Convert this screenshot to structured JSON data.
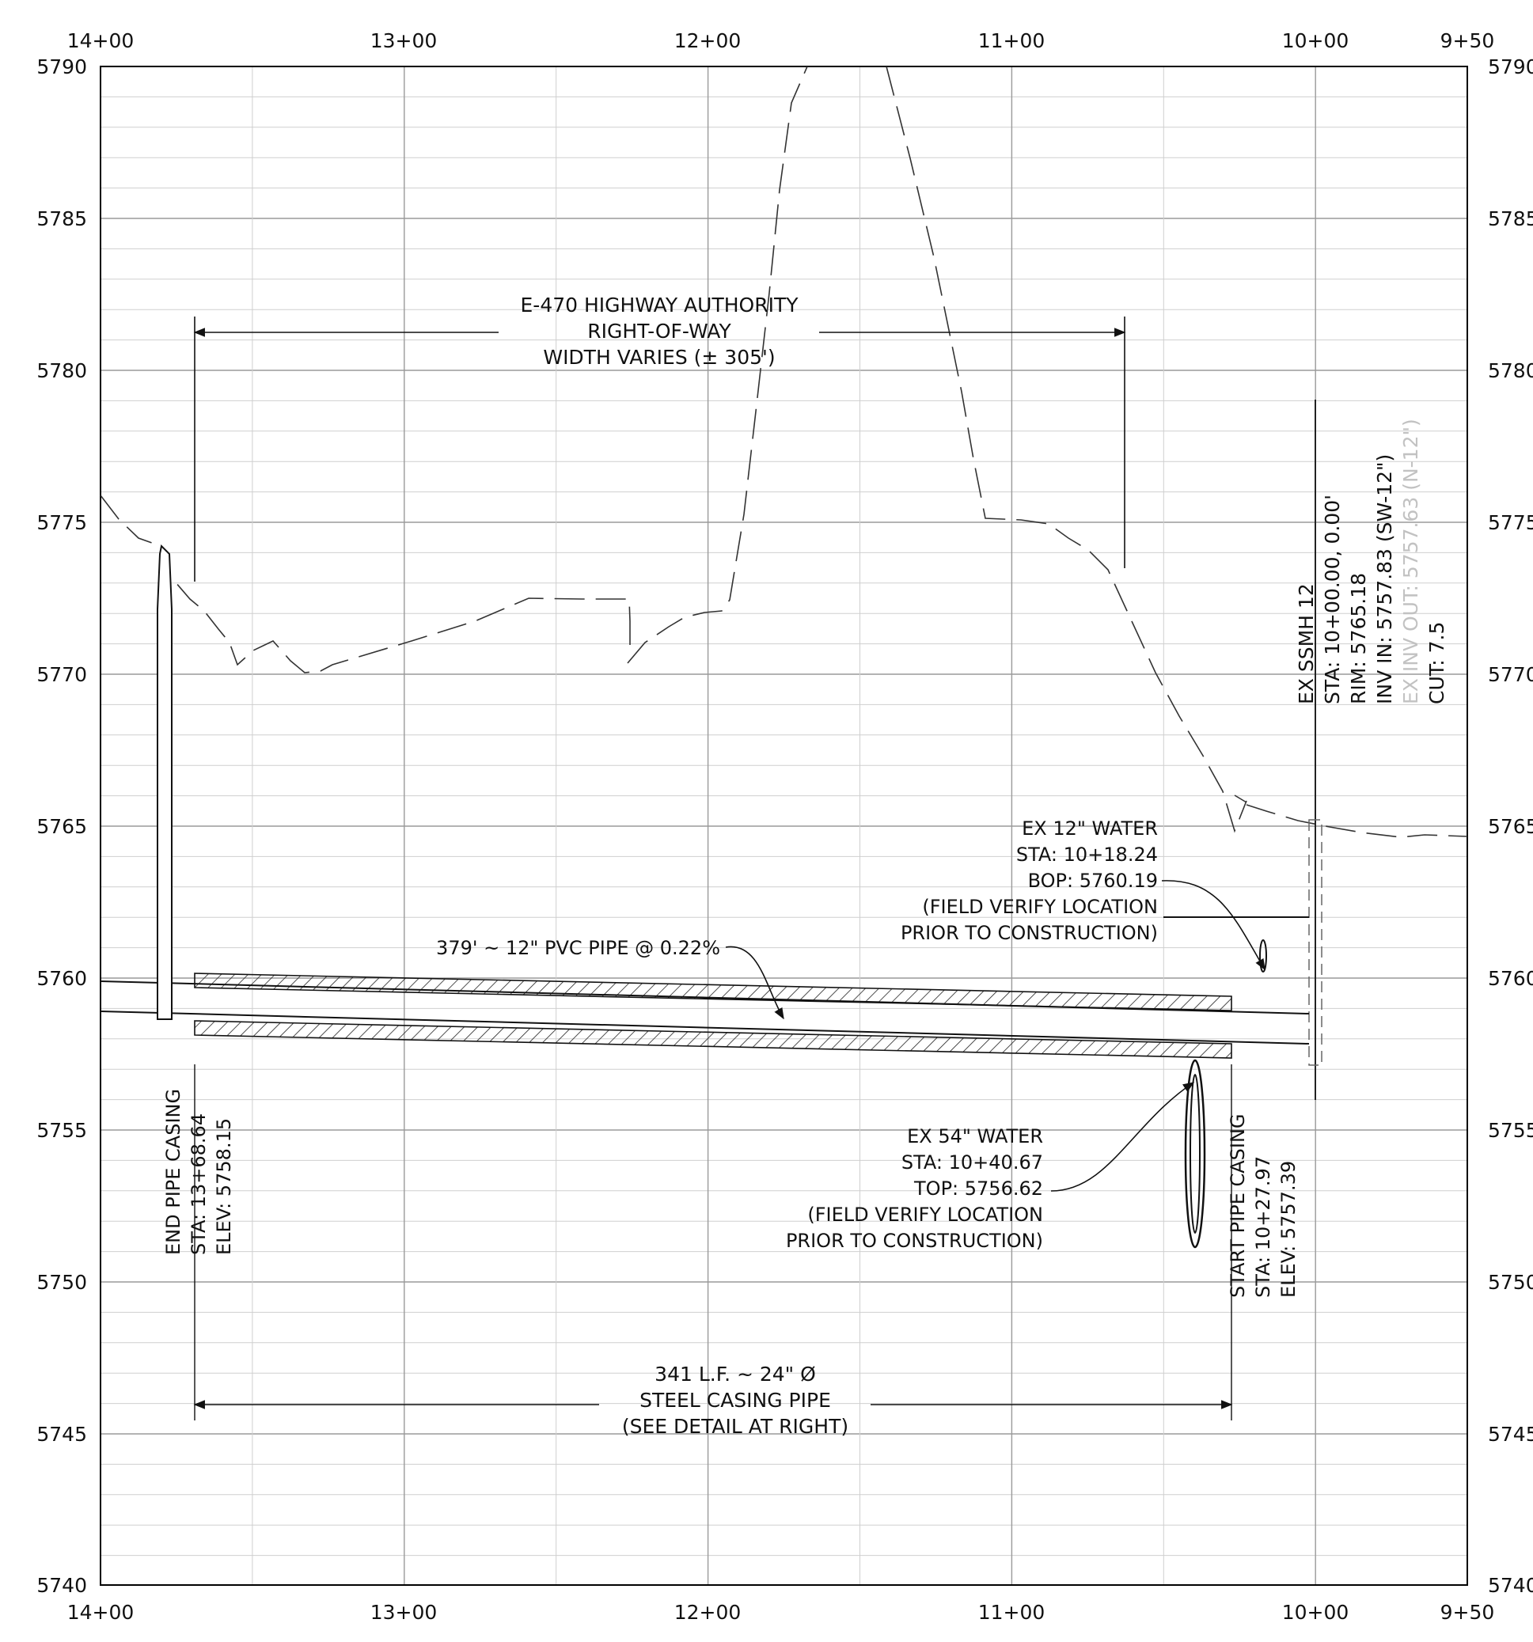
{
  "sheet": {
    "stations_top": [
      "14+00",
      "13+00",
      "12+00",
      "11+00",
      "10+00",
      "9+50"
    ],
    "stations_bottom": [
      "14+00",
      "13+00",
      "12+00",
      "11+00",
      "10+00",
      "9+50"
    ],
    "elevations_left": [
      "5790",
      "5785",
      "5780",
      "5775",
      "5770",
      "5765",
      "5760",
      "5755",
      "5750",
      "5745",
      "5740"
    ],
    "elevations_right": [
      "5790",
      "5785",
      "5780",
      "5775",
      "5770",
      "5765",
      "5760",
      "5755",
      "5750",
      "5745",
      "5740"
    ]
  },
  "annotations": {
    "row": {
      "line1": "E-470 HIGHWAY AUTHORITY",
      "line2": "RIGHT-OF-WAY",
      "line3": "WIDTH VARIES (± 305')"
    },
    "manhole": {
      "line1": "EX SSMH 12",
      "line2": "STA: 10+00.00, 0.00'",
      "line3": "RIM: 5765.18",
      "line4": "INV IN: 5757.83 (SW-12\")",
      "line5": "EX INV OUT: 5757.63 (N-12\")",
      "line6": "CUT: 7.5"
    },
    "water12": {
      "line1": "EX 12\" WATER",
      "line2": "STA: 10+18.24",
      "line3": "BOP: 5760.19",
      "line4": "(FIELD VERIFY LOCATION",
      "line5": "PRIOR TO CONSTRUCTION)"
    },
    "pvc": {
      "label": "379' ~ 12\" PVC PIPE @ 0.22%"
    },
    "end_casing": {
      "line1": "END PIPE CASING",
      "line2": "STA: 13+68.64",
      "line3": "ELEV: 5758.15"
    },
    "start_casing": {
      "line1": "START PIPE CASING",
      "line2": "STA: 10+27.97",
      "line3": "ELEV: 5757.39"
    },
    "water54": {
      "line1": "EX 54\" WATER",
      "line2": "STA: 10+40.67",
      "line3": "TOP: 5756.62",
      "line4": "(FIELD VERIFY LOCATION",
      "line5": "PRIOR TO CONSTRUCTION)"
    },
    "casing_dim": {
      "line1": "341 L.F. ~ 24\" Ø",
      "line2": "STEEL CASING PIPE",
      "line3": "(SEE DETAIL AT RIGHT)"
    }
  }
}
